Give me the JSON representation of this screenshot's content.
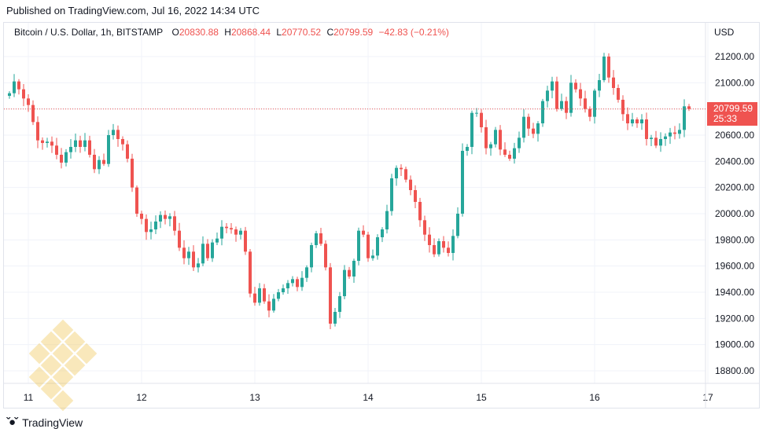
{
  "header": {
    "published": "Published on TradingView.com, Jul 16, 2022 14:34 UTC"
  },
  "legend": {
    "symbol": "Bitcoin / U.S. Dollar, 1h, BITSTAMP",
    "open_label": "O",
    "open": "20830.88",
    "high_label": "H",
    "high": "20868.44",
    "low_label": "L",
    "low": "20770.52",
    "close_label": "C",
    "close": "20799.59",
    "change": "−42.83 (−0.21%)"
  },
  "axis": {
    "currency": "USD"
  },
  "price_tag": {
    "price": "20799.59",
    "countdown": "25:33"
  },
  "footer": {
    "logo_icon": "tradingview-logo-icon",
    "brand": "TradingView"
  },
  "colors": {
    "up": "#26a69a",
    "down": "#ef5350",
    "grid": "#f0f3fa",
    "text": "#131722"
  },
  "chart_data": {
    "type": "candlestick",
    "title": "Bitcoin / U.S. Dollar, 1h, BITSTAMP",
    "ylabel": "USD",
    "ylim": [
      18750,
      21350
    ],
    "y_ticks": [
      "21200.00",
      "21000.00",
      "20800.00",
      "20600.00",
      "20400.00",
      "20200.00",
      "20000.00",
      "19800.00",
      "19600.00",
      "19400.00",
      "19200.00",
      "19000.00",
      "18800.00"
    ],
    "x_ticks": [
      "11",
      "12",
      "13",
      "14",
      "15",
      "16",
      "17"
    ],
    "x_tick_hours": [
      0,
      24,
      48,
      72,
      96,
      120,
      144
    ],
    "grid": true,
    "last_price": 20799.59,
    "series": [
      {
        "start_hour": -4,
        "closes": [
          20920,
          21010,
          20950,
          20880,
          20830,
          20700,
          20560,
          20540,
          20550,
          20520,
          20450,
          20390,
          20470,
          20510,
          20560,
          20510,
          20560,
          20450,
          20340,
          20410,
          20380,
          20600,
          20640,
          20570,
          20530,
          20420,
          20200,
          20000,
          19960,
          19860,
          19880,
          19940,
          19990,
          19960,
          19980,
          19870,
          19740,
          19660,
          19710,
          19590,
          19620,
          19770,
          19660,
          19780,
          19810,
          19900,
          19890,
          19880,
          19840,
          19870,
          19710,
          19390,
          19320,
          19430,
          19330,
          19260,
          19350,
          19400,
          19430,
          19470,
          19500,
          19440,
          19510,
          19590,
          19760,
          19850,
          19770,
          19590,
          19160,
          19250,
          19370,
          19570,
          19520,
          19640,
          19870,
          19840,
          19660,
          19680,
          19820,
          19880,
          20020,
          20270,
          20350,
          20340,
          20260,
          20180,
          20090,
          19950,
          19840,
          19760,
          19690,
          19790,
          19740,
          19700,
          19830,
          20000,
          20480,
          20510,
          20770,
          20770,
          20660,
          20500,
          20530,
          20640,
          20490,
          20450,
          20420,
          20500,
          20580,
          20740,
          20650,
          20610,
          20690,
          20860,
          20940,
          21010,
          20800,
          20860,
          20770,
          21000,
          20950,
          20880,
          20800,
          20740,
          20940,
          21020,
          21200,
          21040,
          20960,
          20870,
          20760,
          20690,
          20720,
          20690,
          20720,
          20570,
          20580,
          20520,
          20570,
          20590,
          20620,
          20610,
          20640,
          20820,
          20800
        ]
      }
    ]
  }
}
